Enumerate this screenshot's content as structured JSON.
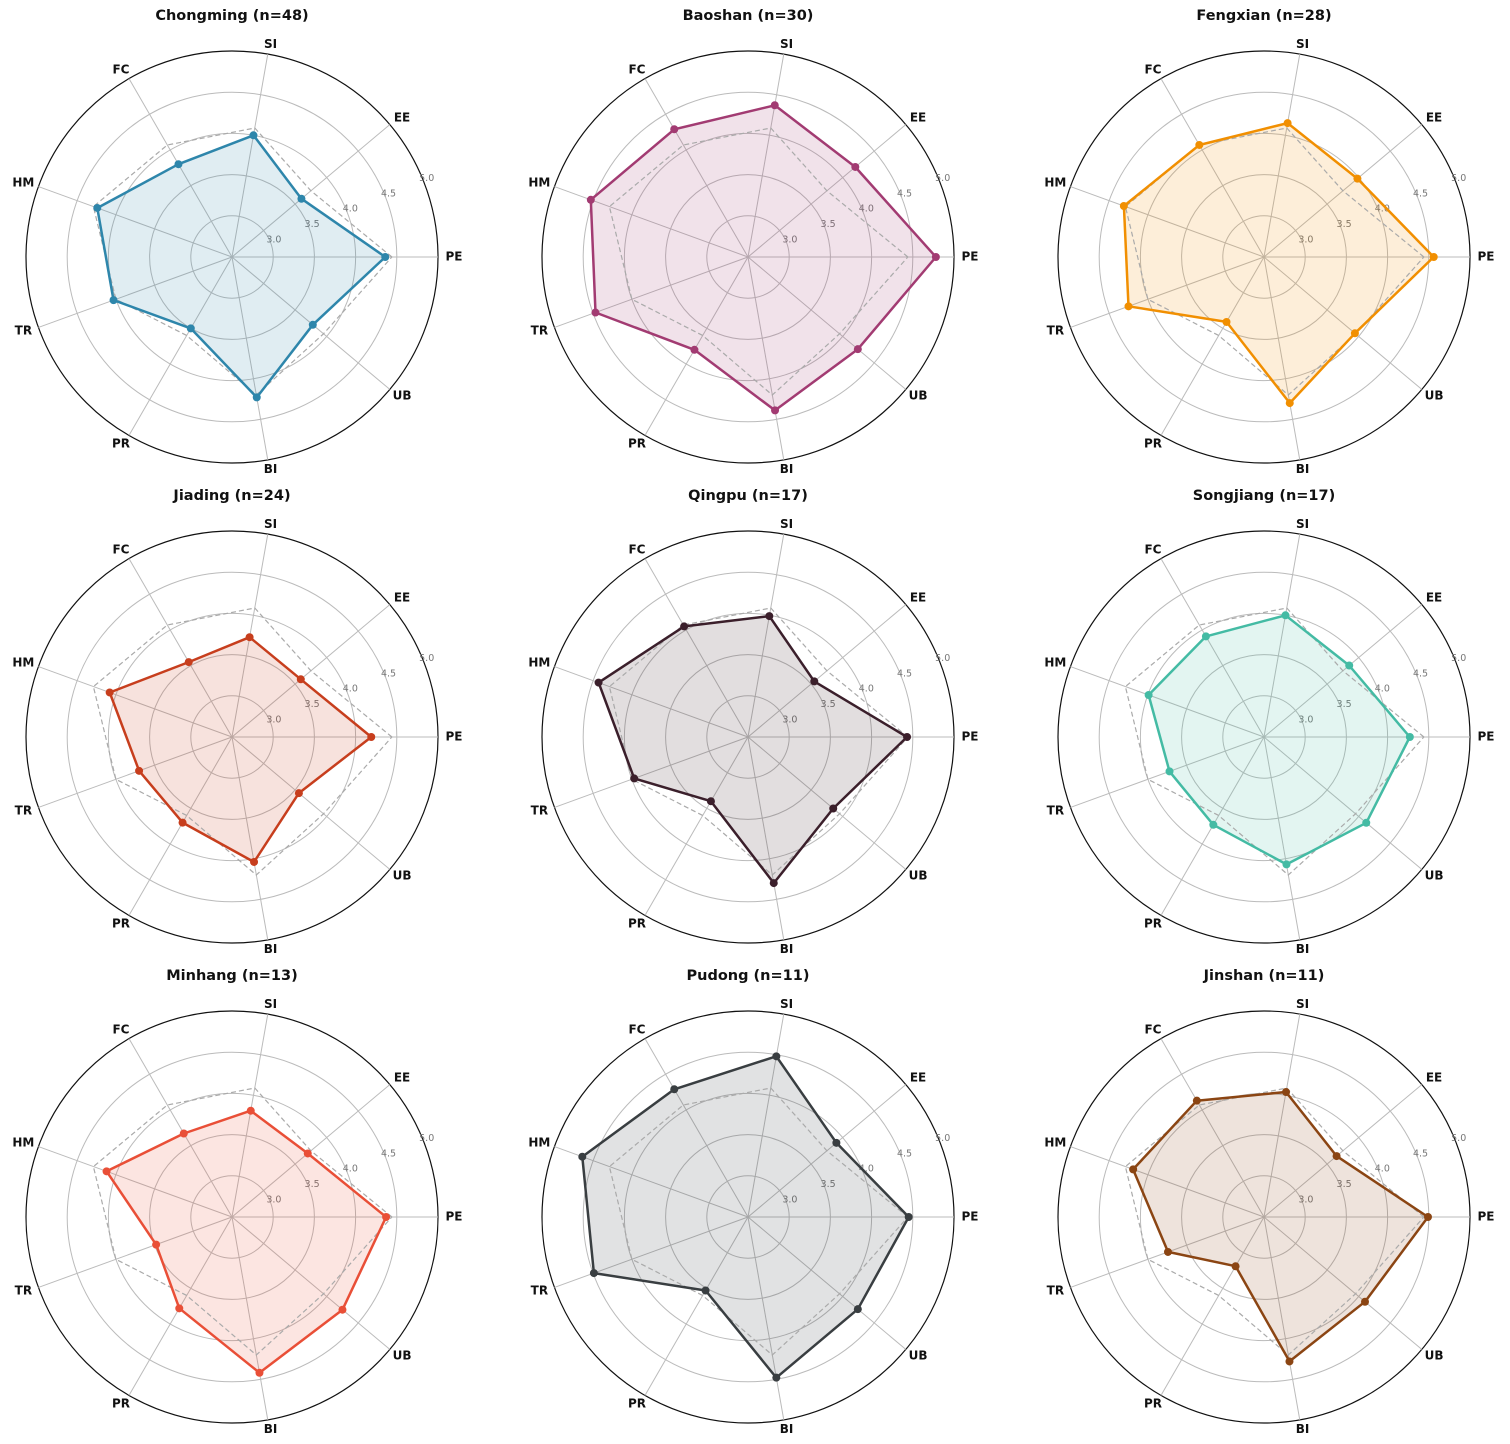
{
  "chart_data": [
    {
      "type": "radar",
      "title": "Chongming (n=48)",
      "categories": [
        "PE",
        "EE",
        "SI",
        "FC",
        "HM",
        "TR",
        "PR",
        "BI",
        "UB"
      ],
      "values": [
        4.36,
        3.6,
        4.0,
        3.8,
        4.24,
        4.03,
        3.5,
        4.23,
        3.78
      ],
      "color": "#2e86ab",
      "reference_values": [
        4.44,
        3.75,
        4.09,
        4.07,
        4.29,
        4.0,
        3.6,
        4.2,
        3.95
      ],
      "ylim": [
        2.5,
        5
      ],
      "yticks": [
        {
          "value": 3,
          "label": "3.0"
        },
        3.5,
        {
          "value": 4,
          "label": "4.0"
        },
        4.5,
        {
          "value": 5,
          "label": "5.0"
        }
      ],
      "grid": true
    },
    {
      "type": "radar",
      "title": "Baoshan (n=30)",
      "categories": [
        "PE",
        "EE",
        "SI",
        "FC",
        "HM",
        "TR",
        "PR",
        "BI",
        "UB"
      ],
      "values": [
        4.78,
        4.2,
        4.37,
        4.29,
        4.53,
        4.47,
        3.8,
        4.39,
        4.24
      ],
      "color": "#a23b72",
      "reference_values": [
        4.44,
        3.75,
        4.09,
        4.07,
        4.29,
        4.0,
        3.6,
        4.2,
        3.95
      ],
      "ylim": [
        2.5,
        5
      ],
      "yticks": [
        {
          "value": 3,
          "label": "3.0"
        },
        3.5,
        {
          "value": 4,
          "label": "4.0"
        },
        4.5,
        {
          "value": 5,
          "label": "5.0"
        }
      ],
      "grid": true
    },
    {
      "type": "radar",
      "title": "Fengxian (n=28)",
      "categories": [
        "PE",
        "EE",
        "SI",
        "FC",
        "HM",
        "TR",
        "PR",
        "BI",
        "UB"
      ],
      "values": [
        4.56,
        3.98,
        4.15,
        4.07,
        4.31,
        4.25,
        3.41,
        4.3,
        3.94
      ],
      "color": "#f18f01",
      "reference_values": [
        4.44,
        3.75,
        4.09,
        4.07,
        4.29,
        4.0,
        3.6,
        4.2,
        3.95
      ],
      "ylim": [
        2.5,
        5
      ],
      "yticks": [
        {
          "value": 3,
          "label": "3.0"
        },
        3.5,
        {
          "value": 4,
          "label": "4.0"
        },
        4.5,
        {
          "value": 5,
          "label": "5.0"
        }
      ],
      "grid": true
    },
    {
      "type": "radar",
      "title": "Jiading (n=24)",
      "categories": [
        "PE",
        "EE",
        "SI",
        "FC",
        "HM",
        "TR",
        "PR",
        "BI",
        "UB"
      ],
      "values": [
        4.19,
        3.59,
        3.73,
        3.55,
        4.08,
        3.7,
        3.7,
        4.04,
        3.56
      ],
      "color": "#c73e1d",
      "reference_values": [
        4.44,
        3.75,
        4.09,
        4.07,
        4.29,
        4.0,
        3.6,
        4.2,
        3.95
      ],
      "ylim": [
        2.5,
        5
      ],
      "yticks": [
        {
          "value": 3,
          "label": "3.0"
        },
        3.5,
        {
          "value": 4,
          "label": "4.0"
        },
        4.5,
        {
          "value": 5,
          "label": "5.0"
        }
      ],
      "grid": true
    },
    {
      "type": "radar",
      "title": "Qingpu (n=17)",
      "categories": [
        "PE",
        "EE",
        "SI",
        "FC",
        "HM",
        "TR",
        "PR",
        "BI",
        "UB"
      ],
      "values": [
        4.43,
        3.55,
        3.99,
        4.05,
        4.43,
        3.97,
        3.4,
        4.3,
        3.85
      ],
      "color": "#3b1f2b",
      "reference_values": [
        4.44,
        3.75,
        4.09,
        4.07,
        4.29,
        4.0,
        3.6,
        4.2,
        3.95
      ],
      "ylim": [
        2.5,
        5
      ],
      "yticks": [
        {
          "value": 3,
          "label": "3.0"
        },
        3.5,
        {
          "value": 4,
          "label": "4.0"
        },
        4.5,
        {
          "value": 5,
          "label": "5.0"
        }
      ],
      "grid": true
    },
    {
      "type": "radar",
      "title": "Songjiang (n=17)",
      "categories": [
        "PE",
        "EE",
        "SI",
        "FC",
        "HM",
        "TR",
        "PR",
        "BI",
        "UB"
      ],
      "values": [
        4.27,
        3.85,
        4.0,
        3.91,
        3.99,
        3.72,
        3.73,
        4.07,
        4.12
      ],
      "color": "#44bba4",
      "reference_values": [
        4.44,
        3.75,
        4.09,
        4.07,
        4.29,
        4.0,
        3.6,
        4.2,
        3.95
      ],
      "ylim": [
        2.5,
        5
      ],
      "yticks": [
        {
          "value": 3,
          "label": "3.0"
        },
        3.5,
        {
          "value": 4,
          "label": "4.0"
        },
        4.5,
        {
          "value": 5,
          "label": "5.0"
        }
      ],
      "grid": true
    },
    {
      "type": "radar",
      "title": "Minhang (n=13)",
      "categories": [
        "PE",
        "EE",
        "SI",
        "FC",
        "HM",
        "TR",
        "PR",
        "BI",
        "UB"
      ],
      "values": [
        4.37,
        3.7,
        3.81,
        3.67,
        4.12,
        3.48,
        3.78,
        4.42,
        4.25
      ],
      "color": "#e94f37",
      "reference_values": [
        4.44,
        3.75,
        4.09,
        4.07,
        4.29,
        4.0,
        3.6,
        4.2,
        3.95
      ],
      "ylim": [
        2.5,
        5
      ],
      "yticks": [
        {
          "value": 3,
          "label": "3.0"
        },
        3.5,
        {
          "value": 4,
          "label": "4.0"
        },
        4.5,
        {
          "value": 5,
          "label": "5.0"
        }
      ],
      "grid": true
    },
    {
      "type": "radar",
      "title": "Pudong (n=11)",
      "categories": [
        "PE",
        "EE",
        "SI",
        "FC",
        "HM",
        "TR",
        "PR",
        "BI",
        "UB"
      ],
      "values": [
        4.45,
        3.9,
        4.48,
        4.29,
        4.64,
        4.49,
        3.53,
        4.48,
        4.24
      ],
      "color": "#393e41",
      "reference_values": [
        4.44,
        3.75,
        4.09,
        4.07,
        4.29,
        4.0,
        3.6,
        4.2,
        3.95
      ],
      "ylim": [
        2.5,
        5
      ],
      "yticks": [
        {
          "value": 3,
          "label": "3.0"
        },
        3.5,
        {
          "value": 4,
          "label": "4.0"
        },
        4.5,
        {
          "value": 5,
          "label": "5.0"
        }
      ],
      "grid": true
    },
    {
      "type": "radar",
      "title": "Jinshan (n=11)",
      "categories": [
        "PE",
        "EE",
        "SI",
        "FC",
        "HM",
        "TR",
        "PR",
        "BI",
        "UB"
      ],
      "values": [
        4.49,
        3.65,
        4.04,
        4.13,
        4.19,
        3.74,
        3.19,
        4.28,
        4.1
      ],
      "color": "#8b4513",
      "reference_values": [
        4.44,
        3.75,
        4.09,
        4.07,
        4.29,
        4.0,
        3.6,
        4.2,
        3.95
      ],
      "ylim": [
        2.5,
        5
      ],
      "yticks": [
        {
          "value": 3,
          "label": "3.0"
        },
        3.5,
        {
          "value": 4,
          "label": "4.0"
        },
        4.5,
        {
          "value": 5,
          "label": "5.0"
        }
      ],
      "grid": true
    }
  ]
}
